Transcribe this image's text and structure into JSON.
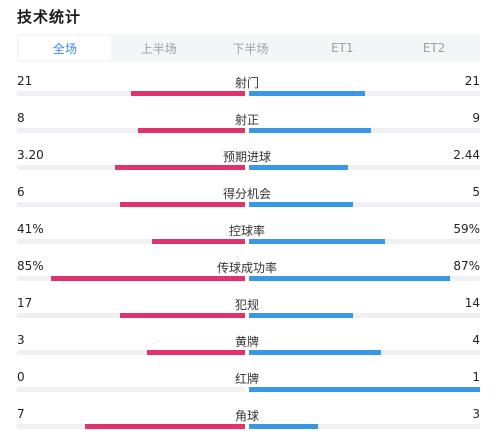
{
  "title": "技术统计",
  "tabs": [
    {
      "label": "全场",
      "active": true
    },
    {
      "label": "上半场",
      "active": false
    },
    {
      "label": "下半场",
      "active": false
    },
    {
      "label": "ET1",
      "active": false
    },
    {
      "label": "ET2",
      "active": false
    }
  ],
  "colors": {
    "home": "#e0336b",
    "away": "#3a97e6",
    "track": "#eef0f3",
    "accent": "#3a86ff"
  },
  "stats": [
    {
      "label": "射门",
      "home": "21",
      "away": "21",
      "home_fill": 0.5,
      "away_fill": 0.5
    },
    {
      "label": "射正",
      "home": "8",
      "away": "9",
      "home_fill": 0.47,
      "away_fill": 0.53
    },
    {
      "label": "预期进球",
      "home": "3.20",
      "away": "2.44",
      "home_fill": 0.57,
      "away_fill": 0.43
    },
    {
      "label": "得分机会",
      "home": "6",
      "away": "5",
      "home_fill": 0.55,
      "away_fill": 0.45
    },
    {
      "label": "控球率",
      "home": "41%",
      "away": "59%",
      "home_fill": 0.41,
      "away_fill": 0.59
    },
    {
      "label": "传球成功率",
      "home": "85%",
      "away": "87%",
      "home_fill": 0.85,
      "away_fill": 0.87
    },
    {
      "label": "犯规",
      "home": "17",
      "away": "14",
      "home_fill": 0.55,
      "away_fill": 0.45
    },
    {
      "label": "黄牌",
      "home": "3",
      "away": "4",
      "home_fill": 0.43,
      "away_fill": 0.57
    },
    {
      "label": "红牌",
      "home": "0",
      "away": "1",
      "home_fill": 0.0,
      "away_fill": 1.0
    },
    {
      "label": "角球",
      "home": "7",
      "away": "3",
      "home_fill": 0.7,
      "away_fill": 0.3
    }
  ]
}
